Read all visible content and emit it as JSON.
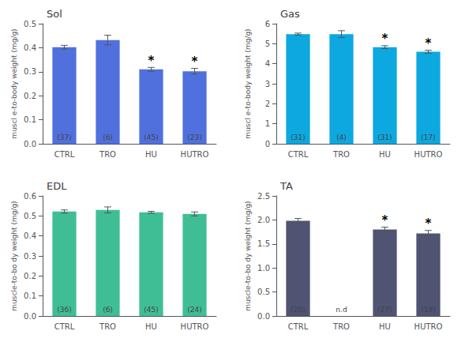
{
  "chart_data": [
    {
      "type": "bar",
      "title": "Sol",
      "ylabel": "muscl e-to-body weight (mg/g)",
      "categories": [
        "CTRL",
        "TRO",
        "HU",
        "HUTRO"
      ],
      "values": [
        0.402,
        0.432,
        0.31,
        0.302
      ],
      "errors": [
        0.008,
        0.02,
        0.008,
        0.012
      ],
      "n_labels": [
        "(37)",
        "(6)",
        "(45)",
        "(23)"
      ],
      "annotations": [
        {
          "category": "HU",
          "text": "*"
        },
        {
          "category": "HUTRO",
          "text": "*"
        }
      ],
      "ylim": [
        0.0,
        0.5
      ],
      "yticks": [
        {
          "value": 0.0,
          "label": "0.0"
        },
        0.1,
        0.2,
        0.3,
        0.4,
        0.5
      ],
      "grid": false
    },
    {
      "type": "bar",
      "title": "Gas",
      "ylabel": "muscl e-to-body weight (mg/g)",
      "categories": [
        "CTRL",
        "TRO",
        "HU",
        "HUTRO"
      ],
      "values": [
        5.48,
        5.48,
        4.83,
        4.6
      ],
      "errors": [
        0.05,
        0.17,
        0.07,
        0.07
      ],
      "n_labels": [
        "(31)",
        "(4)",
        "(31)",
        "(17)"
      ],
      "annotations": [
        {
          "category": "HU",
          "text": "*"
        },
        {
          "category": "HUTRO",
          "text": "*"
        }
      ],
      "ylim": [
        0,
        6
      ],
      "yticks": [
        0,
        1,
        2,
        3,
        4,
        5,
        6
      ],
      "grid": false
    },
    {
      "type": "bar",
      "title": "EDL",
      "ylabel": "muscle-to-bo dy weight (mg/g)",
      "categories": [
        "CTRL",
        "TRO",
        "HU",
        "HUTRO"
      ],
      "values": [
        0.522,
        0.53,
        0.518,
        0.51
      ],
      "errors": [
        0.008,
        0.015,
        0.005,
        0.01
      ],
      "n_labels": [
        "(36)",
        "(6)",
        "(45)",
        "(24)"
      ],
      "ylim": [
        0.0,
        0.6
      ],
      "yticks": [
        {
          "value": 0.0,
          "label": "0.0"
        },
        0.1,
        0.2,
        0.3,
        0.4,
        0.5,
        0.6
      ],
      "grid": false
    },
    {
      "type": "bar",
      "title": "TA",
      "ylabel": "muscle-to-bo dy weight (mg/g)",
      "categories": [
        "CTRL",
        "TRO",
        "HU",
        "HUTRO"
      ],
      "values": [
        1.98,
        null,
        1.8,
        1.72
      ],
      "errors": [
        0.05,
        null,
        0.05,
        0.06
      ],
      "n_labels": [
        "(20)",
        "n.d",
        "(27)",
        "(18)"
      ],
      "annotations": [
        {
          "category": "HU",
          "text": "*"
        },
        {
          "category": "HUTRO",
          "text": "*"
        }
      ],
      "ylim": [
        0.0,
        2.5
      ],
      "yticks": [
        {
          "value": 0.0,
          "label": "0.0"
        },
        0.5,
        {
          "value": 1.0,
          "label": "1.0"
        },
        1.5,
        {
          "value": 2.0,
          "label": "2.0"
        },
        2.5
      ],
      "grid": false
    }
  ]
}
